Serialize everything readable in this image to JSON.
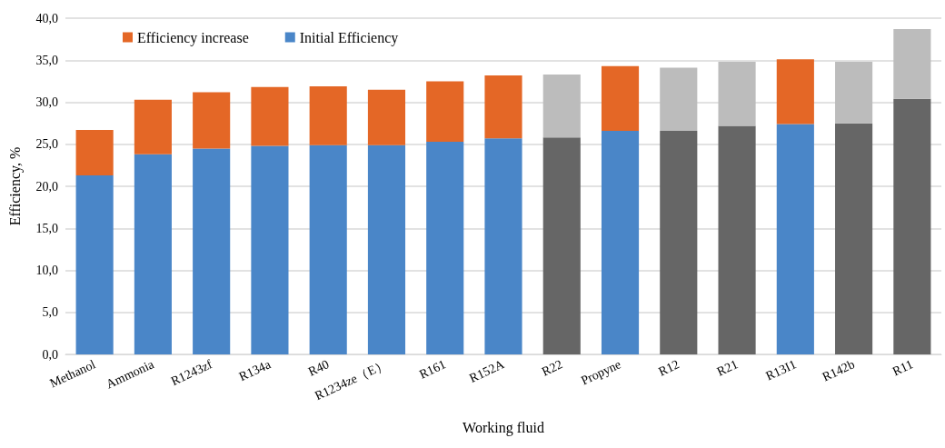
{
  "chart_data": {
    "type": "bar",
    "stacked": true,
    "xlabel": "Working fluid",
    "ylabel": "Efficiency, %",
    "categories": [
      "Methanol",
      "Ammonia",
      "R1243zf",
      "R134a",
      "R40",
      "R1234ze（E）",
      "R161",
      "R152A",
      "R22",
      "Propyne",
      "R12",
      "R21",
      "R13I1",
      "R142b",
      "R11"
    ],
    "series": [
      {
        "name": "Initial Efficiency",
        "color": "#4a86c8",
        "colors": [
          "#4a86c8",
          "#4a86c8",
          "#4a86c8",
          "#4a86c8",
          "#4a86c8",
          "#4a86c8",
          "#4a86c8",
          "#4a86c8",
          "#666666",
          "#4a86c8",
          "#666666",
          "#666666",
          "#4a86c8",
          "#666666",
          "#666666"
        ],
        "values": [
          21.3,
          23.8,
          24.5,
          24.8,
          24.9,
          24.9,
          25.3,
          25.7,
          25.8,
          26.6,
          26.6,
          27.2,
          27.4,
          27.5,
          30.4
        ]
      },
      {
        "name": "Efficiency increase",
        "color": "#e46726",
        "colors": [
          "#e46726",
          "#e46726",
          "#e46726",
          "#e46726",
          "#e46726",
          "#e46726",
          "#e46726",
          "#e46726",
          "#bcbcbc",
          "#e46726",
          "#bcbcbc",
          "#bcbcbc",
          "#e46726",
          "#bcbcbc",
          "#bcbcbc"
        ],
        "values": [
          5.4,
          6.5,
          6.7,
          7.0,
          7.0,
          6.6,
          7.2,
          7.5,
          7.5,
          7.7,
          7.5,
          7.6,
          7.7,
          7.3,
          8.3
        ]
      }
    ],
    "ylim": [
      0,
      40
    ],
    "yticks": [
      {
        "value": 0,
        "label": "0,0"
      },
      {
        "value": 5,
        "label": "5,0"
      },
      {
        "value": 10,
        "label": "10,0"
      },
      {
        "value": 15,
        "label": "15,0"
      },
      {
        "value": 20,
        "label": "20,0"
      },
      {
        "value": 25,
        "label": "25,0"
      },
      {
        "value": 30,
        "label": "30,0"
      },
      {
        "value": 35,
        "label": "35,0"
      },
      {
        "value": 40,
        "label": "40,0"
      }
    ],
    "grid": "y",
    "legend": "top"
  }
}
